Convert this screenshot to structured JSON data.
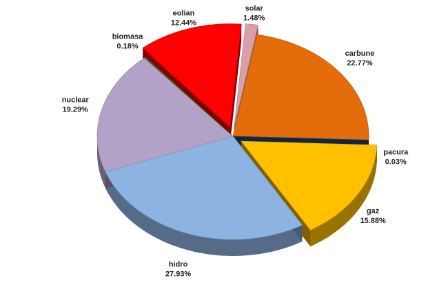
{
  "chart_data": {
    "type": "pie",
    "categories": [
      "eolian",
      "solar",
      "carbune",
      "pacura",
      "gaz",
      "hidro",
      "nuclear",
      "biomasa"
    ],
    "values": [
      12.44,
      1.48,
      22.77,
      0.03,
      15.88,
      27.93,
      19.29,
      0.18
    ],
    "value_labels": [
      "12.44%",
      "1.48%",
      "22.77%",
      "0.03%",
      "15.88%",
      "27.93%",
      "19.29%",
      "0.18%"
    ],
    "colors": [
      "#ff0000",
      "#d9a0a8",
      "#e46c0a",
      "#1f497d",
      "#ffc000",
      "#8db3e2",
      "#b3a2c7",
      "#4f6228"
    ],
    "exploded": [
      true,
      true,
      false,
      false,
      true,
      false,
      false,
      false
    ]
  }
}
